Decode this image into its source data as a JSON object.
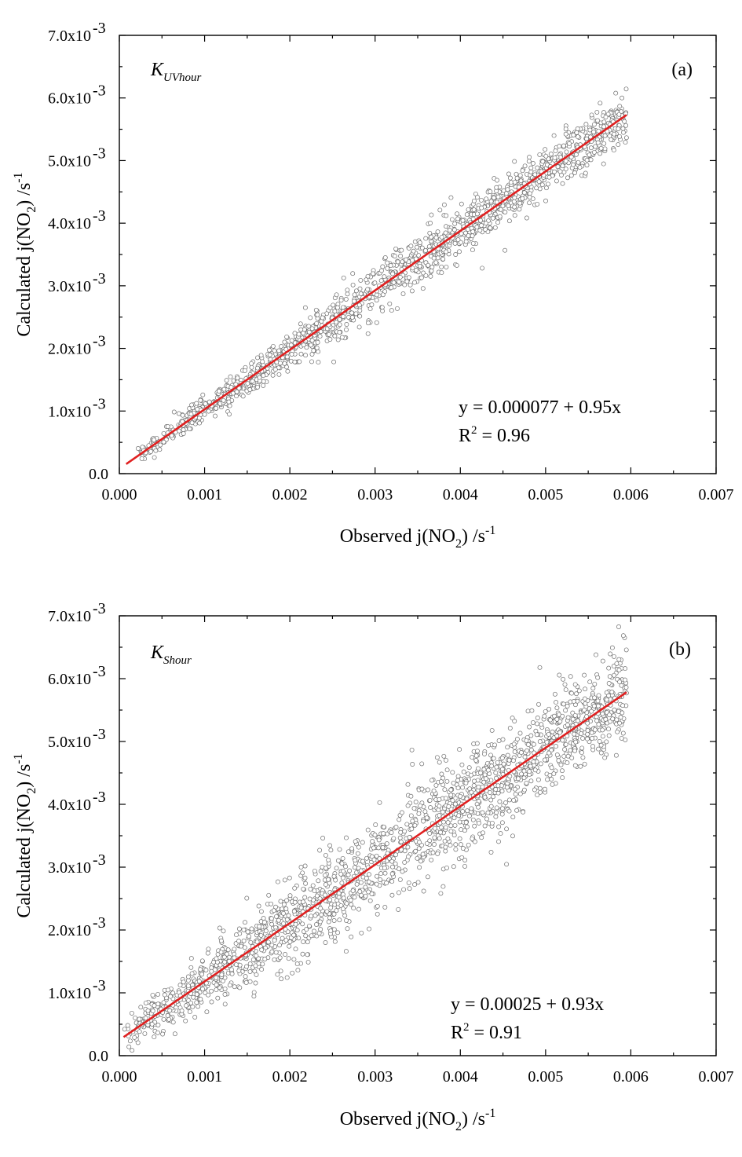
{
  "chart_data": [
    {
      "type": "scatter",
      "panel_label": "(a)",
      "kname": {
        "base": "K",
        "sub": "UVhour"
      },
      "xlabel": {
        "pre": "Observed j(NO",
        "sub": "2",
        "post": ") /s",
        "sup": "-1"
      },
      "ylabel": {
        "pre": "Calculated j(NO",
        "sub": "2",
        "post": ") /s",
        "sup": "-1"
      },
      "xlim": [
        0.0,
        0.007
      ],
      "ylim": [
        0.0,
        0.007
      ],
      "x_ticks": [
        "0.000",
        "0.001",
        "0.002",
        "0.003",
        "0.004",
        "0.005",
        "0.006",
        "0.007"
      ],
      "y_ticks": [
        {
          "base": "0.0",
          "exp": ""
        },
        {
          "base": "1.0x10",
          "exp": "-3"
        },
        {
          "base": "2.0x10",
          "exp": "-3"
        },
        {
          "base": "3.0x10",
          "exp": "-3"
        },
        {
          "base": "4.0x10",
          "exp": "-3"
        },
        {
          "base": "5.0x10",
          "exp": "-3"
        },
        {
          "base": "6.0x10",
          "exp": "-3"
        },
        {
          "base": "7.0x10",
          "exp": "-3"
        }
      ],
      "fit": {
        "intercept": 7.7e-05,
        "slope": 0.95,
        "x_range": [
          8e-05,
          0.00595
        ]
      },
      "equation": "y =  0.000077 + 0.95x",
      "r2": {
        "pre": "R",
        "sup": "2",
        "post": " = 0.96"
      },
      "scatter": {
        "n_points": 1500,
        "x_range": [
          0.0002,
          0.00595
        ],
        "noise_sd": 0.00016
      },
      "grid": false,
      "point_color": "#6d6d6d",
      "fit_color": "#e02020"
    },
    {
      "type": "scatter",
      "panel_label": "(b)",
      "kname": {
        "base": "K",
        "sub": "Shour"
      },
      "xlabel": {
        "pre": "Observed j(NO",
        "sub": "2",
        "post": ") /s",
        "sup": "-1"
      },
      "ylabel": {
        "pre": "Calculated j(NO",
        "sub": "2",
        "post": ") /s",
        "sup": "-1"
      },
      "xlim": [
        0.0,
        0.007
      ],
      "ylim": [
        0.0,
        0.007
      ],
      "x_ticks": [
        "0.000",
        "0.001",
        "0.002",
        "0.003",
        "0.004",
        "0.005",
        "0.006",
        "0.007"
      ],
      "y_ticks": [
        {
          "base": "0.0",
          "exp": ""
        },
        {
          "base": "1.0x10",
          "exp": "-3"
        },
        {
          "base": "2.0x10",
          "exp": "-3"
        },
        {
          "base": "3.0x10",
          "exp": "-3"
        },
        {
          "base": "4.0x10",
          "exp": "-3"
        },
        {
          "base": "5.0x10",
          "exp": "-3"
        },
        {
          "base": "6.0x10",
          "exp": "-3"
        },
        {
          "base": "7.0x10",
          "exp": "-3"
        }
      ],
      "fit": {
        "intercept": 0.00025,
        "slope": 0.93,
        "x_range": [
          5e-05,
          0.00595
        ]
      },
      "equation": "y = 0.00025 +  0.93x",
      "r2": {
        "pre": "R",
        "sup": "2",
        "post": " = 0.91"
      },
      "scatter": {
        "n_points": 1900,
        "x_range": [
          5e-05,
          0.00595
        ],
        "noise_sd": 0.00033
      },
      "grid": false,
      "point_color": "#6d6d6d",
      "fit_color": "#e02020"
    }
  ]
}
